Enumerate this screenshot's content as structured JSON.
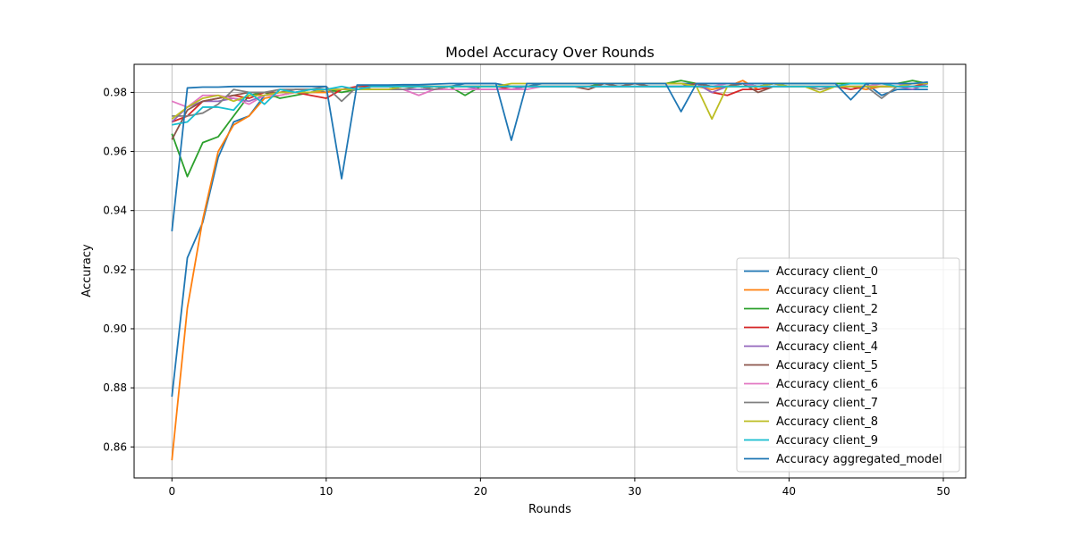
{
  "chart_data": {
    "type": "line",
    "title": "Model Accuracy Over Rounds",
    "xlabel": "Rounds",
    "ylabel": "Accuracy",
    "xlim": [
      -2.45,
      51.45
    ],
    "ylim": [
      0.8495,
      0.9895
    ],
    "xticks": [
      0,
      10,
      20,
      30,
      40,
      50
    ],
    "yticks": [
      0.86,
      0.88,
      0.9,
      0.92,
      0.94,
      0.96,
      0.98
    ],
    "ytick_labels": [
      "0.86",
      "0.88",
      "0.90",
      "0.92",
      "0.94",
      "0.96",
      "0.98"
    ],
    "grid": true,
    "legend_position": "lower-right",
    "series": [
      {
        "name": "Accuracy client_0",
        "color": "#1f77b4",
        "values": [
          0.877,
          0.924,
          0.936,
          0.958,
          0.97,
          0.972,
          0.979,
          0.98,
          0.98,
          0.981,
          0.98,
          0.981,
          0.981,
          0.982,
          0.982,
          0.982,
          0.982,
          0.982,
          0.982,
          0.983,
          0.983,
          0.983,
          0.982,
          0.982,
          0.983,
          0.983,
          0.983,
          0.983,
          0.983,
          0.983,
          0.983,
          0.983,
          0.983,
          0.983,
          0.983,
          0.983,
          0.983,
          0.983,
          0.983,
          0.983,
          0.983,
          0.983,
          0.983,
          0.983,
          0.983,
          0.983,
          0.979,
          0.981,
          0.981,
          0.981
        ]
      },
      {
        "name": "Accuracy client_1",
        "color": "#ff7f0e",
        "values": [
          0.8555,
          0.907,
          0.937,
          0.96,
          0.969,
          0.972,
          0.978,
          0.979,
          0.98,
          0.98,
          0.98,
          0.981,
          0.981,
          0.981,
          0.981,
          0.982,
          0.982,
          0.982,
          0.982,
          0.982,
          0.982,
          0.982,
          0.982,
          0.982,
          0.982,
          0.982,
          0.982,
          0.982,
          0.983,
          0.983,
          0.983,
          0.983,
          0.983,
          0.983,
          0.982,
          0.981,
          0.982,
          0.984,
          0.981,
          0.982,
          0.982,
          0.982,
          0.982,
          0.982,
          0.982,
          0.981,
          0.982,
          0.982,
          0.983,
          0.983
        ]
      },
      {
        "name": "Accuracy client_2",
        "color": "#2ca02c",
        "values": [
          0.966,
          0.9515,
          0.963,
          0.965,
          0.972,
          0.979,
          0.98,
          0.978,
          0.979,
          0.98,
          0.981,
          0.98,
          0.981,
          0.981,
          0.981,
          0.982,
          0.982,
          0.981,
          0.982,
          0.979,
          0.982,
          0.982,
          0.982,
          0.982,
          0.982,
          0.982,
          0.982,
          0.982,
          0.983,
          0.983,
          0.983,
          0.983,
          0.983,
          0.984,
          0.983,
          0.982,
          0.982,
          0.983,
          0.982,
          0.983,
          0.983,
          0.983,
          0.983,
          0.983,
          0.983,
          0.983,
          0.983,
          0.983,
          0.984,
          0.983
        ]
      },
      {
        "name": "Accuracy client_3",
        "color": "#d62728",
        "values": [
          0.97,
          0.972,
          0.977,
          0.978,
          0.979,
          0.978,
          0.98,
          0.98,
          0.98,
          0.979,
          0.978,
          0.981,
          0.982,
          0.982,
          0.982,
          0.982,
          0.982,
          0.982,
          0.982,
          0.982,
          0.982,
          0.982,
          0.981,
          0.982,
          0.982,
          0.982,
          0.982,
          0.982,
          0.982,
          0.982,
          0.982,
          0.982,
          0.982,
          0.982,
          0.983,
          0.98,
          0.979,
          0.981,
          0.981,
          0.982,
          0.982,
          0.982,
          0.982,
          0.982,
          0.981,
          0.982,
          0.982,
          0.982,
          0.982,
          0.983
        ]
      },
      {
        "name": "Accuracy client_4",
        "color": "#9467bd",
        "values": [
          0.97,
          0.975,
          0.977,
          0.977,
          0.978,
          0.977,
          0.979,
          0.98,
          0.98,
          0.98,
          0.981,
          0.981,
          0.981,
          0.981,
          0.981,
          0.981,
          0.981,
          0.981,
          0.982,
          0.982,
          0.981,
          0.981,
          0.981,
          0.982,
          0.982,
          0.982,
          0.982,
          0.982,
          0.982,
          0.982,
          0.983,
          0.982,
          0.982,
          0.982,
          0.983,
          0.98,
          0.982,
          0.983,
          0.982,
          0.983,
          0.982,
          0.982,
          0.982,
          0.982,
          0.982,
          0.982,
          0.982,
          0.982,
          0.981,
          0.983
        ]
      },
      {
        "name": "Accuracy client_5",
        "color": "#8c564b",
        "values": [
          0.964,
          0.974,
          0.977,
          0.978,
          0.979,
          0.98,
          0.98,
          0.98,
          0.981,
          0.981,
          0.981,
          0.981,
          0.981,
          0.982,
          0.982,
          0.982,
          0.982,
          0.981,
          0.982,
          0.982,
          0.982,
          0.982,
          0.982,
          0.982,
          0.982,
          0.982,
          0.982,
          0.981,
          0.983,
          0.982,
          0.983,
          0.982,
          0.982,
          0.982,
          0.983,
          0.982,
          0.982,
          0.983,
          0.98,
          0.982,
          0.982,
          0.982,
          0.982,
          0.982,
          0.982,
          0.982,
          0.982,
          0.982,
          0.982,
          0.982
        ]
      },
      {
        "name": "Accuracy client_6",
        "color": "#e377c2",
        "values": [
          0.977,
          0.975,
          0.979,
          0.979,
          0.978,
          0.976,
          0.979,
          0.979,
          0.98,
          0.98,
          0.981,
          0.981,
          0.981,
          0.981,
          0.981,
          0.981,
          0.979,
          0.981,
          0.981,
          0.981,
          0.981,
          0.981,
          0.981,
          0.981,
          0.982,
          0.982,
          0.982,
          0.982,
          0.982,
          0.982,
          0.982,
          0.982,
          0.982,
          0.982,
          0.982,
          0.982,
          0.983,
          0.983,
          0.982,
          0.982,
          0.982,
          0.982,
          0.982,
          0.982,
          0.982,
          0.982,
          0.983,
          0.983,
          0.982,
          0.982
        ]
      },
      {
        "name": "Accuracy client_7",
        "color": "#7f7f7f",
        "values": [
          0.972,
          0.972,
          0.973,
          0.976,
          0.981,
          0.98,
          0.98,
          0.981,
          0.981,
          0.981,
          0.982,
          0.977,
          0.982,
          0.981,
          0.981,
          0.981,
          0.982,
          0.981,
          0.982,
          0.982,
          0.982,
          0.982,
          0.982,
          0.982,
          0.982,
          0.982,
          0.982,
          0.982,
          0.982,
          0.982,
          0.982,
          0.982,
          0.982,
          0.982,
          0.982,
          0.982,
          0.982,
          0.982,
          0.982,
          0.982,
          0.982,
          0.982,
          0.981,
          0.982,
          0.982,
          0.982,
          0.978,
          0.982,
          0.982,
          0.982
        ]
      },
      {
        "name": "Accuracy client_8",
        "color": "#bcbd22",
        "values": [
          0.971,
          0.975,
          0.978,
          0.979,
          0.977,
          0.979,
          0.979,
          0.98,
          0.98,
          0.98,
          0.981,
          0.981,
          0.981,
          0.981,
          0.981,
          0.982,
          0.982,
          0.982,
          0.982,
          0.982,
          0.982,
          0.982,
          0.983,
          0.983,
          0.983,
          0.983,
          0.983,
          0.983,
          0.983,
          0.983,
          0.983,
          0.983,
          0.983,
          0.983,
          0.982,
          0.971,
          0.982,
          0.982,
          0.982,
          0.983,
          0.982,
          0.982,
          0.98,
          0.982,
          0.982,
          0.982,
          0.982,
          0.982,
          0.983,
          0.983
        ]
      },
      {
        "name": "Accuracy client_9",
        "color": "#17becf",
        "values": [
          0.969,
          0.97,
          0.975,
          0.975,
          0.974,
          0.98,
          0.976,
          0.981,
          0.98,
          0.981,
          0.981,
          0.982,
          0.981,
          0.982,
          0.982,
          0.982,
          0.982,
          0.982,
          0.982,
          0.982,
          0.982,
          0.982,
          0.982,
          0.982,
          0.982,
          0.982,
          0.982,
          0.982,
          0.982,
          0.982,
          0.982,
          0.982,
          0.982,
          0.982,
          0.982,
          0.982,
          0.982,
          0.982,
          0.982,
          0.982,
          0.982,
          0.982,
          0.982,
          0.982,
          0.983,
          0.983,
          0.983,
          0.982,
          0.982,
          0.982
        ]
      },
      {
        "name": "Accuracy aggregated_model",
        "color": "#1f77b4",
        "values": [
          0.933,
          0.9815,
          0.9818,
          0.9818,
          0.982,
          0.982,
          0.982,
          0.982,
          0.982,
          0.982,
          0.982,
          0.9508,
          0.9825,
          0.9825,
          0.9825,
          0.9826,
          0.9826,
          0.9828,
          0.983,
          0.983,
          0.983,
          0.983,
          0.9638,
          0.983,
          0.983,
          0.983,
          0.983,
          0.983,
          0.983,
          0.983,
          0.983,
          0.983,
          0.983,
          0.9735,
          0.983,
          0.983,
          0.983,
          0.983,
          0.983,
          0.983,
          0.983,
          0.983,
          0.983,
          0.983,
          0.9775,
          0.983,
          0.983,
          0.983,
          0.983,
          0.9835
        ]
      }
    ]
  }
}
